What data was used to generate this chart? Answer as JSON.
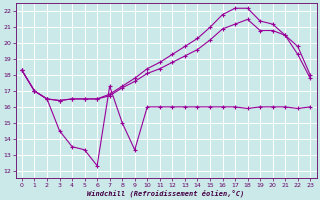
{
  "background_color": "#cbe9e9",
  "grid_color": "#ffffff",
  "line_color": "#990099",
  "xlabel": "Windchill (Refroidissement éolien,°C)",
  "xlim": [
    -0.5,
    23.5
  ],
  "ylim": [
    11.5,
    22.5
  ],
  "yticks": [
    12,
    13,
    14,
    15,
    16,
    17,
    18,
    19,
    20,
    21,
    22
  ],
  "xticks": [
    0,
    1,
    2,
    3,
    4,
    5,
    6,
    7,
    8,
    9,
    10,
    11,
    12,
    13,
    14,
    15,
    16,
    17,
    18,
    19,
    20,
    21,
    22,
    23
  ],
  "line1_x": [
    0,
    1,
    2,
    3,
    4,
    5,
    6,
    7,
    8,
    9,
    10,
    11,
    12,
    13,
    14,
    15,
    16,
    17,
    18,
    19,
    20,
    21,
    22,
    23
  ],
  "line1_y": [
    18.3,
    17.0,
    16.5,
    14.5,
    13.5,
    13.3,
    12.3,
    17.3,
    15.0,
    13.3,
    16.0,
    16.0,
    16.0,
    16.0,
    16.0,
    16.0,
    16.0,
    16.0,
    15.9,
    16.0,
    16.0,
    16.0,
    15.9,
    16.0
  ],
  "line2_x": [
    0,
    1,
    2,
    3,
    4,
    5,
    6,
    7,
    8,
    9,
    10,
    11,
    12,
    13,
    14,
    15,
    16,
    17,
    18,
    19,
    20,
    21,
    22,
    23
  ],
  "line2_y": [
    18.3,
    17.0,
    16.5,
    16.4,
    16.5,
    16.5,
    16.5,
    16.7,
    17.2,
    17.6,
    18.1,
    18.4,
    18.8,
    19.2,
    19.6,
    20.2,
    20.9,
    21.2,
    21.5,
    20.8,
    20.8,
    20.5,
    19.8,
    18.0
  ],
  "line3_x": [
    0,
    1,
    2,
    3,
    4,
    5,
    6,
    7,
    8,
    9,
    10,
    11,
    12,
    13,
    14,
    15,
    16,
    17,
    18,
    19,
    20,
    21,
    22,
    23
  ],
  "line3_y": [
    18.3,
    17.0,
    16.5,
    16.4,
    16.5,
    16.5,
    16.5,
    16.8,
    17.3,
    17.8,
    18.4,
    18.8,
    19.3,
    19.8,
    20.3,
    21.0,
    21.8,
    22.2,
    22.2,
    21.4,
    21.2,
    20.5,
    19.3,
    17.8
  ]
}
